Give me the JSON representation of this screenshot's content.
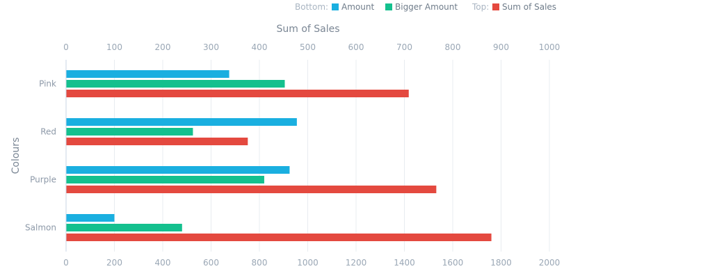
{
  "chart_data": {
    "type": "bar",
    "orientation": "horizontal",
    "categories": [
      "Pink",
      "Red",
      "Purple",
      "Salmon"
    ],
    "y_axis_title": "Colours",
    "bottom_axis": {
      "range": [
        0,
        2000
      ],
      "ticks": [
        "0",
        "200",
        "400",
        "600",
        "800",
        "1000",
        "1200",
        "1400",
        "1600",
        "1800",
        "2000"
      ]
    },
    "top_axis": {
      "title": "Sum of Sales",
      "range": [
        0,
        1000
      ],
      "ticks": [
        "0",
        "100",
        "200",
        "300",
        "400",
        "500",
        "600",
        "700",
        "800",
        "900",
        "1000"
      ]
    },
    "series": [
      {
        "name": "Amount",
        "axis": "bottom",
        "color": "#1aafe0",
        "values": [
          675,
          955,
          925,
          200
        ]
      },
      {
        "name": "Bigger Amount",
        "axis": "bottom",
        "color": "#14c08e",
        "values": [
          905,
          525,
          820,
          480
        ]
      },
      {
        "name": "Sum of Sales",
        "axis": "top",
        "color": "#e4493f",
        "values": [
          709,
          376,
          766,
          880
        ]
      }
    ],
    "legend": {
      "position": "top-right",
      "bottom_label": "Bottom:",
      "top_label": "Top:"
    },
    "grid": true
  }
}
